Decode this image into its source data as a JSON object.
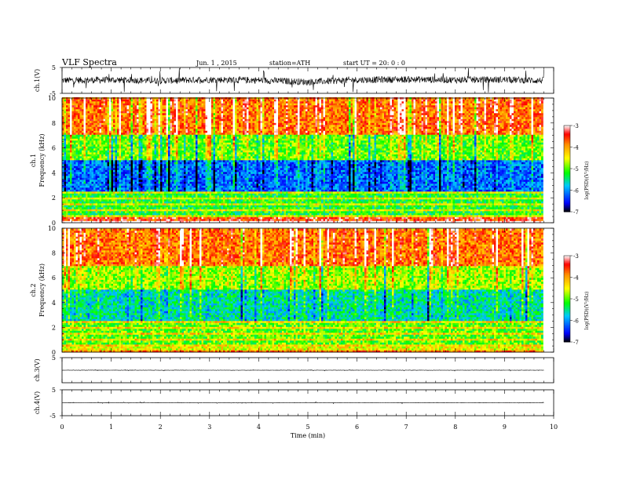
{
  "header": {
    "title": "VLF  Spectra",
    "date": "Jun. 1  , 2015",
    "station": "station=ATH",
    "start_ut": "start  UT  =   20: 0   : 0"
  },
  "colors": {
    "waveform": "#000000",
    "colormap": [
      "#000000",
      "#0000ff",
      "#00c8ff",
      "#00ff00",
      "#ffff00",
      "#ff8c00",
      "#ff0000",
      "#ffffff"
    ]
  },
  "chart_data": [
    {
      "type": "line",
      "panel": "ch1-waveform",
      "ylabel": "ch.1(V)",
      "ylim": [
        -5,
        5
      ],
      "yticks": [
        "5",
        "-5"
      ],
      "x": [
        0,
        1,
        2,
        3,
        4,
        5,
        6,
        7,
        8,
        9,
        9.8
      ],
      "values": [
        0,
        0.2,
        -0.1,
        0.3,
        0.1,
        -0.6,
        0.2,
        0.4,
        0.2,
        0.3,
        -0.1
      ],
      "note_amplitude": "noisy signal roughly within -2 .. 2 V"
    },
    {
      "type": "heatmap",
      "panel": "ch1-spectrogram",
      "ylabel_channel": "ch.1",
      "ylabel": "Frequency  (kHz)",
      "ylim": [
        0,
        10
      ],
      "yticks": [
        "0",
        "2",
        "4",
        "6",
        "8",
        "10"
      ],
      "colorbar": {
        "label": "log(PSD)(V²/Hz)",
        "range": [
          -7,
          -3
        ],
        "ticks": [
          "-3",
          "-4",
          "-5",
          "-6",
          "-7"
        ]
      },
      "bands_logpsd": [
        {
          "f": [
            0,
            0.5
          ],
          "logpsd": -3.5
        },
        {
          "f": [
            0.5,
            2.5
          ],
          "logpsd": -5.2
        },
        {
          "f": [
            2.5,
            5
          ],
          "logpsd": -6.2
        },
        {
          "f": [
            5,
            7
          ],
          "logpsd": -5.0
        },
        {
          "f": [
            7,
            10
          ],
          "logpsd": -3.8
        }
      ]
    },
    {
      "type": "heatmap",
      "panel": "ch2-spectrogram",
      "ylabel_channel": "ch.2",
      "ylabel": "Frequency  (kHz)",
      "ylim": [
        0,
        10
      ],
      "yticks": [
        "0",
        "2",
        "4",
        "6",
        "8",
        "10"
      ],
      "colorbar": {
        "label": "log(PSD)(V²/Hz)",
        "range": [
          -7,
          -3
        ],
        "ticks": [
          "-3",
          "-4",
          "-5",
          "-6",
          "-7"
        ]
      },
      "bands_logpsd": [
        {
          "f": [
            0,
            0.5
          ],
          "logpsd": -4.5
        },
        {
          "f": [
            0.5,
            2.5
          ],
          "logpsd": -5.0
        },
        {
          "f": [
            2.5,
            5
          ],
          "logpsd": -5.6
        },
        {
          "f": [
            5,
            7
          ],
          "logpsd": -4.8
        },
        {
          "f": [
            7,
            10
          ],
          "logpsd": -3.8
        }
      ]
    },
    {
      "type": "line",
      "panel": "ch3-waveform",
      "ylabel": "ch.3(V)",
      "ylim": [
        -5,
        5
      ],
      "yticks": [
        "5"
      ],
      "x": [
        0,
        9.8
      ],
      "values": [
        0,
        0
      ]
    },
    {
      "type": "line",
      "panel": "ch4-waveform",
      "ylabel": "ch.4(V)",
      "ylim": [
        -5,
        5
      ],
      "yticks": [
        "5",
        "-5"
      ],
      "x": [
        0,
        9.8
      ],
      "values": [
        0,
        0
      ]
    }
  ],
  "x_axis": {
    "label": "Time  (min)",
    "xlim": [
      0,
      10
    ],
    "ticks": [
      "0",
      "1",
      "2",
      "3",
      "4",
      "5",
      "6",
      "7",
      "8",
      "9",
      "10"
    ]
  }
}
